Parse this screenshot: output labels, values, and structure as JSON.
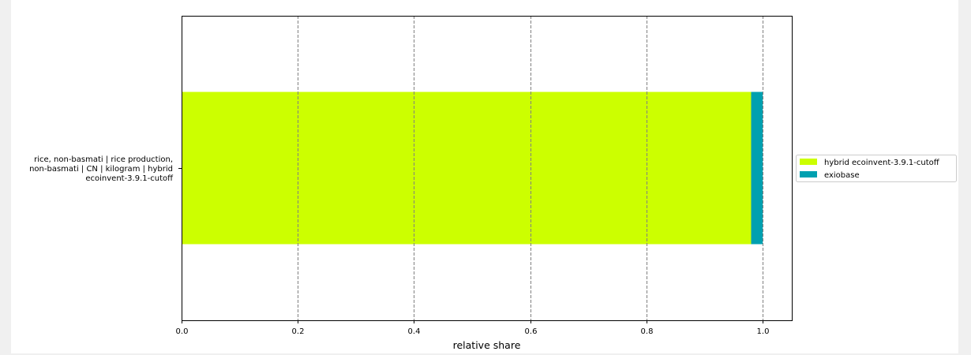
{
  "chart_data": {
    "type": "bar",
    "orientation": "horizontal",
    "stacked": true,
    "categories": [
      "rice, non-basmati | rice production, non-basmati | CN | kilogram | hybrid ecoinvent-3.9.1-cutoff"
    ],
    "category_label_lines": [
      "rice, non-basmati | rice production,",
      "non-basmati | CN | kilogram | hybrid",
      "ecoinvent-3.9.1-cutoff"
    ],
    "series": [
      {
        "name": "hybrid ecoinvent-3.9.1-cutoff",
        "values": [
          0.98
        ],
        "color": "#ccff00"
      },
      {
        "name": "exiobase",
        "values": [
          0.02
        ],
        "color": "#00a0b0"
      }
    ],
    "xlabel": "relative share",
    "ylabel": "",
    "xlim": [
      0.0,
      1.05
    ],
    "xticks": [
      0.0,
      0.2,
      0.4,
      0.6,
      0.8,
      1.0
    ],
    "xtick_labels": [
      "0.0",
      "0.2",
      "0.4",
      "0.6",
      "0.8",
      "1.0"
    ],
    "grid": "vertical dashed",
    "legend_position": "right"
  }
}
